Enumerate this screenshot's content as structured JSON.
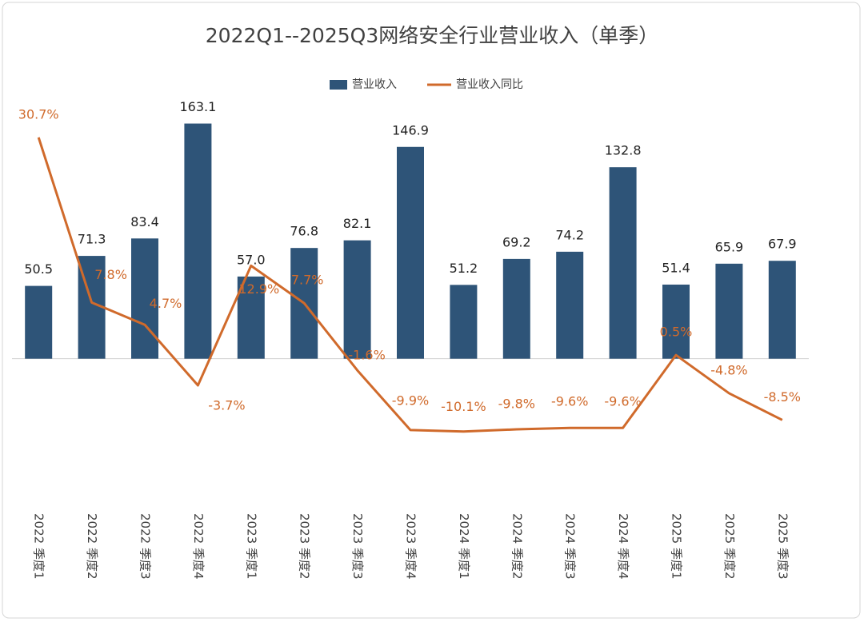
{
  "chart_data": {
    "type": "bar-line",
    "title": "2022Q1--2025Q3网络安全行业营业收入（单季）",
    "categories": [
      "2022 季度1",
      "2022 季度2",
      "2022 季度3",
      "2022 季度4",
      "2023 季度1",
      "2023 季度2",
      "2023 季度3",
      "2023 季度4",
      "2024 季度1",
      "2024 季度2",
      "2024 季度3",
      "2024 季度4",
      "2025 季度1",
      "2025 季度2",
      "2025 季度3"
    ],
    "series": [
      {
        "name": "营业收入",
        "type": "bar",
        "color": "#2e5478",
        "values": [
          50.5,
          71.3,
          83.4,
          163.1,
          57.0,
          76.8,
          82.1,
          146.9,
          51.2,
          69.2,
          74.2,
          132.8,
          51.4,
          65.9,
          67.9
        ],
        "value_labels": [
          "50.5",
          "71.3",
          "83.4",
          "163.1",
          "57.0",
          "76.8",
          "82.1",
          "146.9",
          "51.2",
          "69.2",
          "74.2",
          "132.8",
          "51.4",
          "65.9",
          "67.9"
        ]
      },
      {
        "name": "营业收入同比",
        "type": "line",
        "axis": "y2",
        "color": "#d06a2b",
        "values": [
          30.7,
          7.8,
          4.7,
          -3.7,
          12.9,
          7.7,
          -1.6,
          -9.9,
          -10.1,
          -9.8,
          -9.6,
          -9.6,
          0.5,
          -4.8,
          -8.5
        ],
        "value_labels": [
          "30.7%",
          "7.8%",
          "4.7%",
          "-3.7%",
          "12.9%",
          "7.7%",
          "-1.6%",
          "-9.9%",
          "-10.1%",
          "-9.8%",
          "-9.6%",
          "-9.6%",
          "0.5%",
          "-4.8%",
          "-8.5%"
        ]
      }
    ],
    "ylim": [
      -100,
      200
    ],
    "y2lim": [
      -20,
      40
    ],
    "legend": "top"
  }
}
